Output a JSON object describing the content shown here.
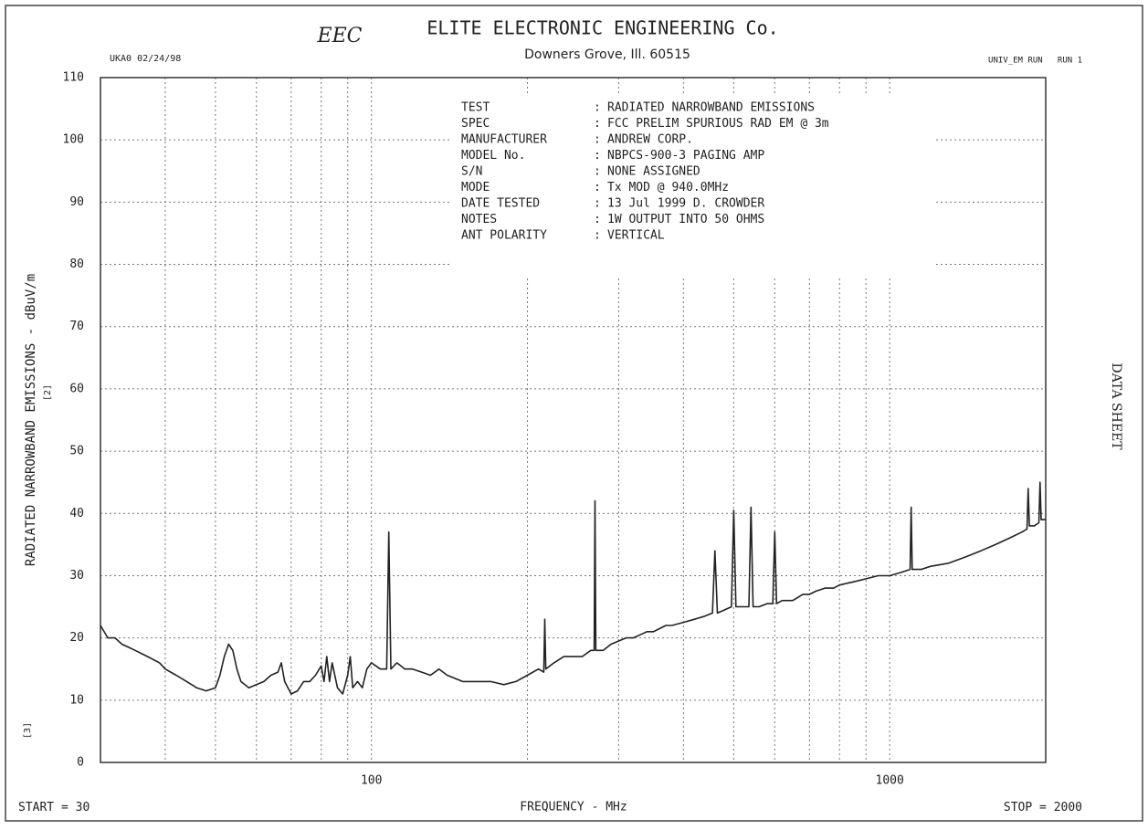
{
  "chart_data": {
    "type": "line",
    "company": "ELITE ELECTRONIC ENGINEERING Co.",
    "address": "Downers Grove, Ill. 60515",
    "logo": "EEC",
    "header_left": "UKA0 02/24/98",
    "header_right": "UNIV_EM RUN   RUN 1",
    "side_label": "DATA SHEET",
    "y_label": "RADIATED NARROWBAND EMISSIONS - dBuV/m",
    "x_label": "FREQUENCY - MHz",
    "start_label": "START =",
    "stop_label": "STOP =",
    "page_marks": [
      "[2]",
      "[3]"
    ],
    "info": [
      {
        "key": "TEST",
        "value": "RADIATED NARROWBAND EMISSIONS"
      },
      {
        "key": "SPEC",
        "value": "FCC PRELIM SPURIOUS RAD EM @ 3m"
      },
      {
        "key": "MANUFACTURER",
        "value": "ANDREW CORP."
      },
      {
        "key": "MODEL No.",
        "value": "NBPCS-900-3 PAGING AMP"
      },
      {
        "key": "S/N",
        "value": "NONE ASSIGNED"
      },
      {
        "key": "MODE",
        "value": "Tx MOD @ 940.0MHz"
      },
      {
        "key": "DATE TESTED",
        "value": "13 Jul 1999  D. CROWDER"
      },
      {
        "key": "NOTES",
        "value": "1W OUTPUT INTO 50 OHMS"
      },
      {
        "key": "ANT POLARITY",
        "value": "VERTICAL"
      }
    ],
    "x_log": true,
    "xlim": [
      30,
      2000
    ],
    "xticks": [
      100,
      1000
    ],
    "x_minor_grid": [
      40,
      50,
      60,
      70,
      80,
      90,
      200,
      300,
      400,
      500,
      600,
      700,
      800,
      900
    ],
    "ylim": [
      0,
      110
    ],
    "yticks": [
      0,
      10,
      20,
      30,
      40,
      50,
      60,
      70,
      80,
      90,
      100,
      110
    ],
    "grid": true,
    "color": "#222222",
    "x": [
      30,
      31,
      32,
      33,
      34,
      35,
      37,
      39,
      40,
      42,
      44,
      46,
      48,
      50,
      51,
      52,
      53,
      54,
      55,
      56,
      58,
      60,
      62,
      64,
      66,
      67,
      68,
      70,
      72,
      74,
      76,
      78,
      80,
      81,
      82,
      83,
      84,
      86,
      88,
      90,
      91,
      92,
      94,
      96,
      98,
      100,
      102,
      104,
      106,
      107,
      108,
      109,
      112,
      116,
      120,
      125,
      130,
      135,
      140,
      145,
      150,
      160,
      170,
      180,
      190,
      200,
      210,
      215,
      216,
      217,
      225,
      235,
      245,
      255,
      265,
      269,
      270,
      271,
      280,
      290,
      300,
      310,
      320,
      330,
      340,
      350,
      360,
      370,
      380,
      400,
      420,
      440,
      455,
      460,
      465,
      480,
      495,
      500,
      505,
      520,
      535,
      540,
      545,
      560,
      580,
      595,
      600,
      605,
      620,
      650,
      680,
      700,
      720,
      750,
      780,
      800,
      850,
      900,
      950,
      1000,
      1050,
      1095,
      1100,
      1105,
      1150,
      1200,
      1300,
      1400,
      1500,
      1600,
      1700,
      1800,
      1840,
      1850,
      1860,
      1900,
      1940,
      1950,
      1960,
      2000
    ],
    "values": [
      22,
      20,
      20,
      19,
      18.5,
      18,
      17,
      16,
      15,
      14,
      13,
      12,
      11.5,
      12,
      14,
      17,
      19,
      18,
      15,
      13,
      12,
      12.5,
      13,
      14,
      14.5,
      16,
      13,
      11,
      11.5,
      13,
      13,
      14,
      15.5,
      13,
      17,
      13,
      16,
      12,
      11,
      14,
      17,
      12,
      13,
      12,
      15,
      16,
      15.5,
      15,
      15,
      15,
      37,
      15,
      16,
      15,
      15,
      14.5,
      14,
      15,
      14,
      13.5,
      13,
      13,
      13,
      12.5,
      13,
      14,
      15,
      14.5,
      23,
      15,
      16,
      17,
      17,
      17,
      18,
      18,
      42,
      18,
      18,
      19,
      19.5,
      20,
      20,
      20.5,
      21,
      21,
      21.5,
      22,
      22,
      22.5,
      23,
      23.5,
      24,
      34,
      24,
      24.5,
      25,
      40.5,
      25,
      25,
      25,
      41,
      25,
      25,
      25.5,
      25.5,
      37,
      25.5,
      26,
      26,
      27,
      27,
      27.5,
      28,
      28,
      28.5,
      29,
      29.5,
      30,
      30,
      30.5,
      31,
      41,
      31,
      31,
      31.5,
      32,
      33,
      34,
      35,
      36,
      37,
      37.5,
      44,
      38,
      38,
      38.5,
      45,
      39,
      39
    ]
  }
}
